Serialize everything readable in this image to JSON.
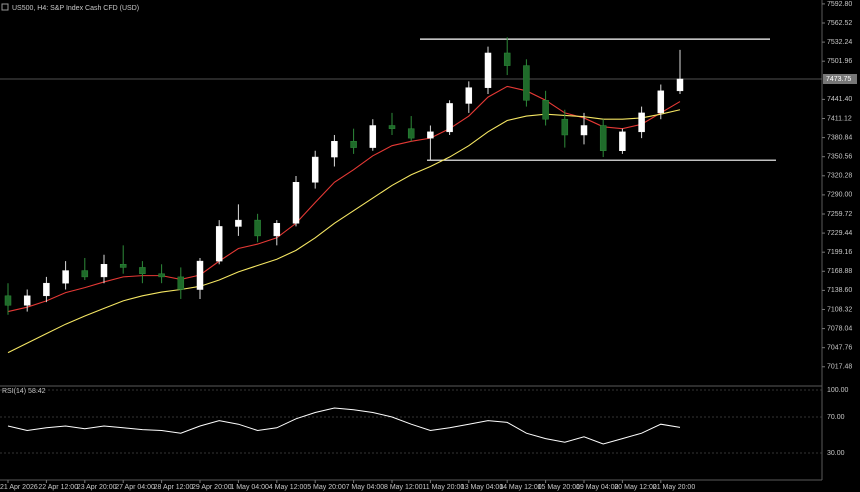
{
  "chart_data": [
    {
      "type": "candlestick",
      "title": "US500, H4:  S&P Index Cash CFD (USD)",
      "open": [
        7130,
        7115,
        7130,
        7150,
        7170,
        7160,
        7180,
        7175,
        7165,
        7160,
        7140,
        7185,
        7240,
        7250,
        7225,
        7245,
        7310,
        7350,
        7375,
        7365,
        7400,
        7395,
        7380,
        7390,
        7435,
        7460,
        7515,
        7495,
        7440,
        7410,
        7385,
        7400,
        7360,
        7390,
        7420,
        7455
      ],
      "high": [
        7150,
        7140,
        7160,
        7185,
        7190,
        7195,
        7210,
        7185,
        7180,
        7175,
        7190,
        7250,
        7275,
        7260,
        7250,
        7320,
        7360,
        7385,
        7395,
        7410,
        7420,
        7415,
        7400,
        7440,
        7470,
        7525,
        7540,
        7505,
        7455,
        7425,
        7420,
        7410,
        7395,
        7430,
        7465,
        7520
      ],
      "low": [
        7100,
        7105,
        7120,
        7140,
        7155,
        7150,
        7165,
        7150,
        7150,
        7125,
        7125,
        7180,
        7225,
        7215,
        7210,
        7240,
        7300,
        7335,
        7355,
        7360,
        7385,
        7375,
        7345,
        7385,
        7420,
        7450,
        7480,
        7430,
        7400,
        7365,
        7370,
        7350,
        7355,
        7380,
        7410,
        7450
      ],
      "close": [
        7115,
        7130,
        7150,
        7170,
        7160,
        7180,
        7175,
        7165,
        7160,
        7140,
        7185,
        7240,
        7250,
        7225,
        7245,
        7310,
        7350,
        7375,
        7365,
        7400,
        7395,
        7380,
        7390,
        7435,
        7460,
        7515,
        7495,
        7440,
        7410,
        7385,
        7400,
        7360,
        7390,
        7420,
        7455,
        7473.75
      ],
      "up_color": "#ffffff",
      "down_color": "#1f6b2a",
      "overlays": [
        {
          "color": "#e53935",
          "values": [
            7105,
            7112,
            7122,
            7135,
            7143,
            7152,
            7160,
            7162,
            7162,
            7156,
            7163,
            7185,
            7205,
            7212,
            7222,
            7245,
            7278,
            7310,
            7330,
            7352,
            7368,
            7375,
            7380,
            7395,
            7415,
            7445,
            7462,
            7455,
            7440,
            7420,
            7412,
            7398,
            7395,
            7402,
            7420,
            7438
          ]
        },
        {
          "color": "#f5e663",
          "values": [
            7040,
            7055,
            7070,
            7085,
            7098,
            7110,
            7122,
            7130,
            7136,
            7140,
            7145,
            7155,
            7168,
            7178,
            7188,
            7202,
            7222,
            7245,
            7265,
            7285,
            7305,
            7322,
            7335,
            7350,
            7368,
            7390,
            7408,
            7415,
            7418,
            7416,
            7414,
            7410,
            7410,
            7412,
            7418,
            7425
          ]
        }
      ],
      "hlines": [
        7537,
        7345
      ],
      "hline_color": "#ffffff",
      "last_price": {
        "value": 7473.75,
        "label": "7473.75"
      },
      "ylim": [
        6987,
        7599
      ],
      "yticks": [
        {
          "value": 7592.8,
          "label": "7592.80"
        },
        {
          "value": 7562.52,
          "label": "7562.52"
        },
        {
          "value": 7532.24,
          "label": "7532.24"
        },
        {
          "value": 7501.96,
          "label": "7501.96"
        },
        {
          "value": 7441.4,
          "label": "7441.40"
        },
        {
          "value": 7411.12,
          "label": "7411.12"
        },
        {
          "value": 7380.84,
          "label": "7380.84"
        },
        {
          "value": 7350.56,
          "label": "7350.56"
        },
        {
          "value": 7320.28,
          "label": "7320.28"
        },
        {
          "value": 7290,
          "label": "7290.00"
        },
        {
          "value": 7259.72,
          "label": "7259.72"
        },
        {
          "value": 7229.44,
          "label": "7229.44"
        },
        {
          "value": 7199.16,
          "label": "7199.16"
        },
        {
          "value": 7168.88,
          "label": "7168.88"
        },
        {
          "value": 7138.6,
          "label": "7138.60"
        },
        {
          "value": 7108.32,
          "label": "7108.32"
        },
        {
          "value": 7078.04,
          "label": "7078.04"
        },
        {
          "value": 7047.76,
          "label": "7047.76"
        },
        {
          "value": 7017.48,
          "label": "7017.48"
        }
      ]
    },
    {
      "type": "line",
      "title": "RSI(14) 58.42",
      "color": "#ffffff",
      "categories": [
        "21 Apr 2026",
        null,
        "22 Apr 12:00",
        null,
        "23 Apr 20:00",
        null,
        "27 Apr 04:00",
        null,
        "28 Apr 12:00",
        null,
        "29 Apr 20:00",
        null,
        "1 May 04:00",
        null,
        "4 May 12:00",
        null,
        "5 May 20:00",
        null,
        "7 May 04:00",
        null,
        "8 May 12:00",
        null,
        "11 May 20:00",
        null,
        "13 May 04:00",
        null,
        "14 May 12:00",
        null,
        "15 May 20:00",
        null,
        "19 May 04:00",
        null,
        "20 May 12:00",
        null,
        "21 May 20:00",
        null
      ],
      "values": [
        60,
        55,
        58,
        60,
        57,
        60,
        58,
        56,
        55,
        52,
        60,
        66,
        62,
        55,
        58,
        68,
        75,
        80,
        78,
        75,
        70,
        62,
        55,
        58,
        62,
        66,
        64,
        52,
        46,
        42,
        48,
        40,
        46,
        52,
        62,
        58.42
      ],
      "ylim": [
        0,
        100
      ],
      "yticks": [
        {
          "value": 100,
          "label": "100.00"
        },
        {
          "value": 70,
          "label": "70.00"
        },
        {
          "value": 30,
          "label": "30.00"
        }
      ],
      "grid": "dashed"
    }
  ]
}
